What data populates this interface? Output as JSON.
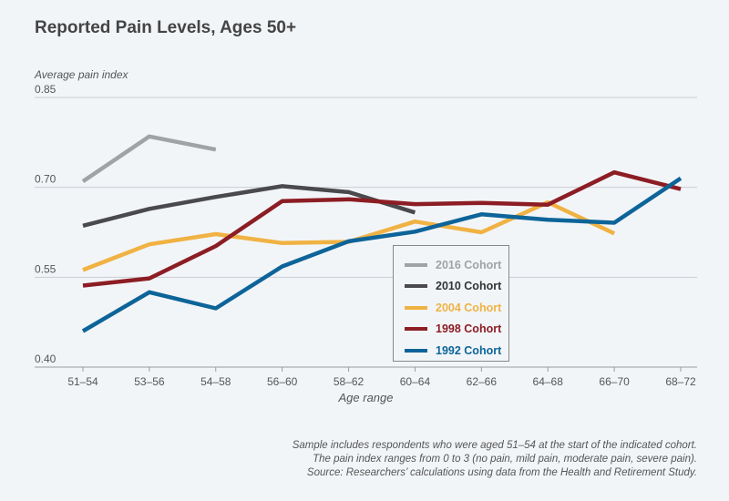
{
  "chart_data": {
    "type": "line",
    "title": "Reported Pain Levels, Ages 50+",
    "ylabel": "Average pain index",
    "xlabel": "Age range",
    "categories": [
      "51–54",
      "53–56",
      "54–58",
      "56–60",
      "58–62",
      "60–64",
      "62–66",
      "64–68",
      "66–70",
      "68–72"
    ],
    "ylim": [
      0.4,
      0.85
    ],
    "yticks": [
      "0.85",
      "0.70",
      "0.55",
      "0.40"
    ],
    "ytick_values": [
      0.85,
      0.7,
      0.55,
      0.4
    ],
    "series": [
      {
        "name": "2016 Cohort",
        "color": "#a0a3a6",
        "values": [
          0.71,
          0.785,
          0.763,
          null,
          null,
          null,
          null,
          null,
          null,
          null
        ]
      },
      {
        "name": "2010 Cohort",
        "color": "#4a4a4c",
        "values": [
          0.636,
          0.664,
          0.684,
          0.702,
          0.692,
          0.658,
          null,
          null,
          null,
          null
        ]
      },
      {
        "name": "2004 Cohort",
        "color": "#f0b243",
        "values": [
          0.562,
          0.605,
          0.622,
          0.607,
          0.609,
          0.643,
          0.625,
          0.675,
          0.623,
          null
        ]
      },
      {
        "name": "1998 Cohort",
        "color": "#8c1d24",
        "values": [
          0.536,
          0.548,
          0.602,
          0.677,
          0.68,
          0.672,
          0.674,
          0.671,
          0.725,
          0.697
        ]
      },
      {
        "name": "1992 Cohort",
        "color": "#0d6499",
        "values": [
          0.46,
          0.525,
          0.498,
          0.568,
          0.61,
          0.626,
          0.655,
          0.646,
          0.641,
          0.715
        ]
      }
    ],
    "grid": true,
    "legend_position": "bottom-center"
  },
  "footnote": [
    "Sample includes respondents who were aged 51–54 at the start of the indicated cohort.",
    "The pain index ranges from 0 to 3 (no pain, mild pain, moderate pain, severe pain).",
    "Source: Researchers’ calculations using data from the Health and Retirement Study."
  ]
}
